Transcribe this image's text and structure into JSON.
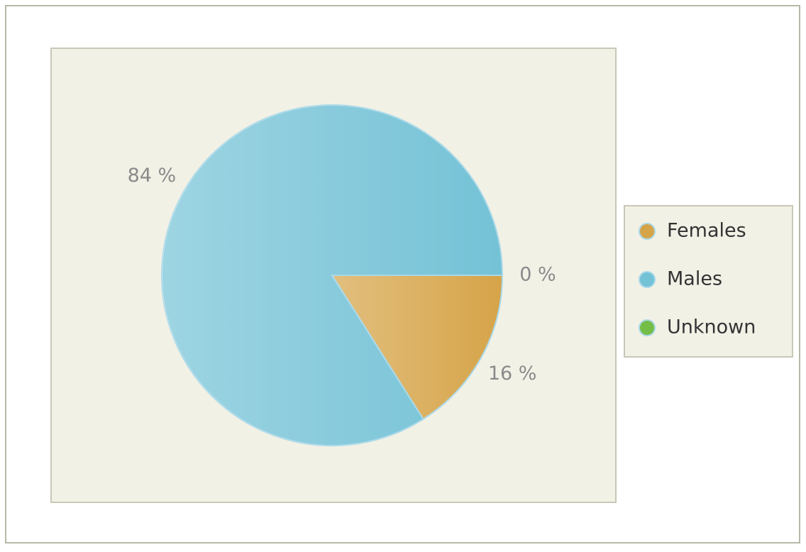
{
  "chart_data": {
    "type": "pie",
    "categories": [
      "Females",
      "Males",
      "Unknown"
    ],
    "values": [
      16,
      84,
      0
    ],
    "value_labels": [
      "16 %",
      "84 %",
      "0 %"
    ],
    "colors": [
      "#d6a448",
      "#74c2d6",
      "#74be48"
    ],
    "legend": "right"
  }
}
